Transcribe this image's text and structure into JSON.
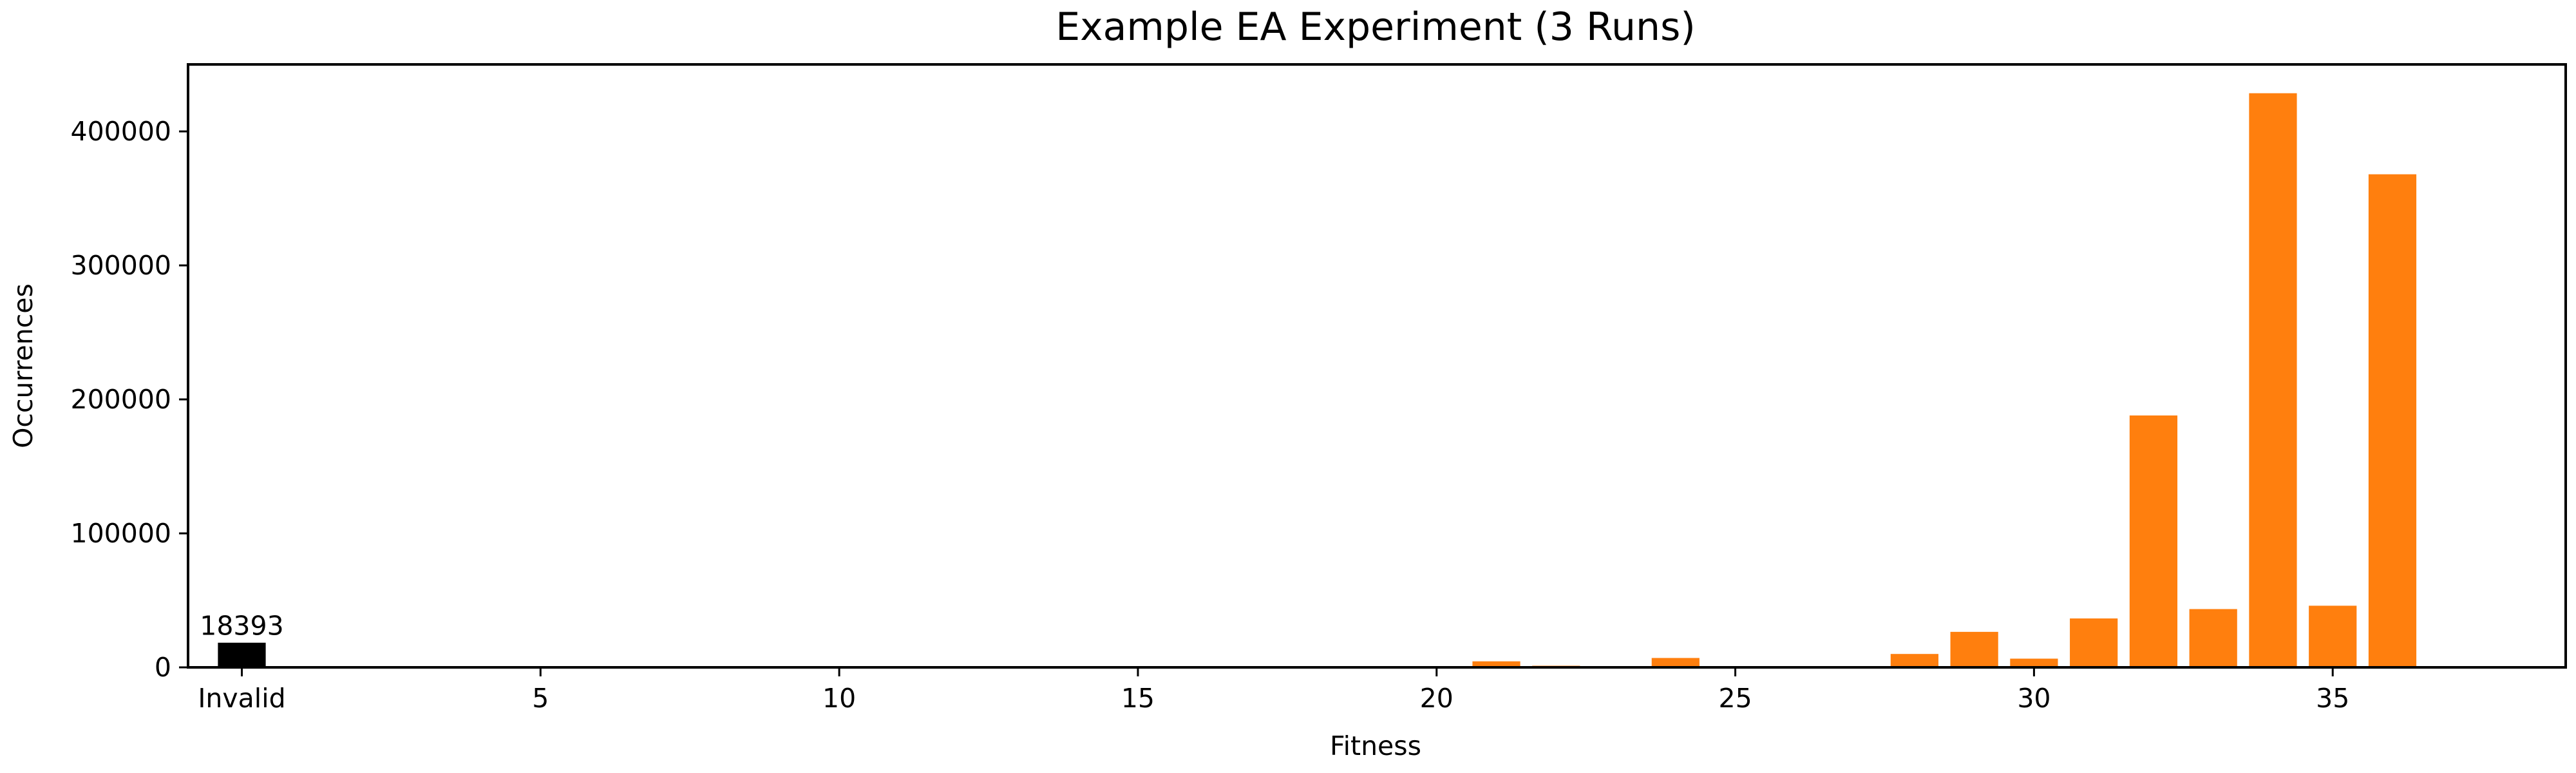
{
  "chart_data": {
    "type": "bar",
    "title": "Example EA Experiment (3 Runs)",
    "xlabel": "Fitness",
    "ylabel": "Occurrences",
    "xlim": [
      -0.9,
      38.9
    ],
    "ylim": [
      0,
      450000
    ],
    "x_ticks": [
      {
        "value": 0,
        "label": "Invalid"
      },
      {
        "value": 5,
        "label": "5"
      },
      {
        "value": 10,
        "label": "10"
      },
      {
        "value": 15,
        "label": "15"
      },
      {
        "value": 20,
        "label": "20"
      },
      {
        "value": 25,
        "label": "25"
      },
      {
        "value": 30,
        "label": "30"
      },
      {
        "value": 35,
        "label": "35"
      }
    ],
    "y_ticks": [
      {
        "value": 0,
        "label": "0"
      },
      {
        "value": 100000,
        "label": "100000"
      },
      {
        "value": 200000,
        "label": "200000"
      },
      {
        "value": 300000,
        "label": "300000"
      },
      {
        "value": 400000,
        "label": "400000"
      }
    ],
    "invalid": {
      "category": "Invalid",
      "value": 18393,
      "label": "18393",
      "color": "#000000"
    },
    "series": [
      {
        "color": "#ff7f0e",
        "x": [
          21,
          22,
          24,
          26,
          28,
          29,
          30,
          31,
          32,
          33,
          34,
          35,
          36
        ],
        "values": [
          4500,
          1200,
          7000,
          500,
          10000,
          26500,
          6500,
          36500,
          188000,
          43500,
          428500,
          46000,
          368000
        ]
      }
    ],
    "grid": false,
    "legend": "none"
  }
}
